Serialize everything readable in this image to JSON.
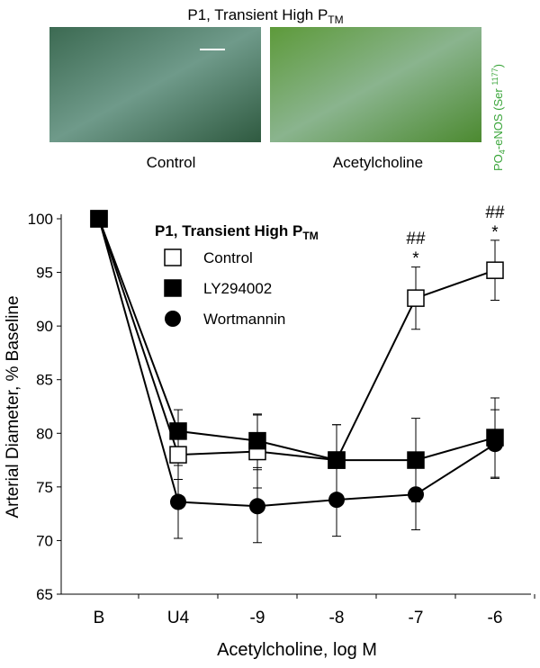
{
  "panel": {
    "title": {
      "text": "P1, Transient High P",
      "subscript": "TM"
    },
    "images": [
      {
        "label": "Control"
      },
      {
        "label": "Acetylcholine"
      }
    ],
    "side_label": {
      "parts": [
        "PO",
        "4",
        "-eNOS (Ser ",
        "1177",
        ")"
      ]
    }
  },
  "chart_data": {
    "type": "line",
    "legend_title": {
      "text": "P1, Transient High P",
      "subscript": "TM"
    },
    "x_label": "Acetylcholine, log M",
    "y_label": "Arterial Diameter, % Baseline",
    "categories": [
      "B",
      "U4",
      "-9",
      "-8",
      "-7",
      "-6"
    ],
    "ylim": [
      65,
      100
    ],
    "yticks": [
      65,
      70,
      75,
      80,
      85,
      90,
      95,
      100
    ],
    "series": [
      {
        "name": "Control",
        "marker": "open-square",
        "color": "#000000",
        "values": [
          100,
          78,
          78.3,
          77.5,
          92.6,
          95.2
        ],
        "errors": [
          null,
          2.3,
          3.4,
          3.3,
          2.9,
          2.8
        ]
      },
      {
        "name": "LY294002",
        "marker": "square",
        "color": "#000000",
        "values": [
          100,
          80.2,
          79.3,
          77.5,
          77.5,
          79.6
        ],
        "errors": [
          null,
          2,
          2.5,
          3.3,
          3.9,
          3.7
        ]
      },
      {
        "name": "Wortmannin",
        "marker": "circle",
        "color": "#000000",
        "values": [
          100,
          73.6,
          73.2,
          73.8,
          74.3,
          79
        ],
        "errors": [
          null,
          3.4,
          3.4,
          3.4,
          3.3,
          3.2
        ]
      }
    ],
    "annotations": [
      {
        "category": 4,
        "lines": [
          "##",
          "*"
        ]
      },
      {
        "category": 5,
        "lines": [
          "##",
          "*"
        ]
      }
    ]
  }
}
